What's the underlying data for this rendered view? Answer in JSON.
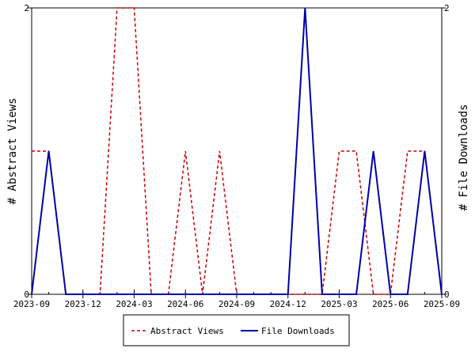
{
  "chart_data": {
    "type": "line",
    "x_type": "month",
    "x_range": [
      "2023-09",
      "2025-09"
    ],
    "x_ticks": [
      "2023-09",
      "2023-12",
      "2024-03",
      "2024-06",
      "2024-09",
      "2024-12",
      "2025-03",
      "2025-06",
      "2025-09"
    ],
    "ylim": [
      0,
      2
    ],
    "y_ticks": [
      "0",
      "2"
    ],
    "ylabel_left": "# Abstract Views",
    "ylabel_right": "# File Downloads",
    "grid": false,
    "legend_position": "bottom",
    "series": [
      {
        "name": "Abstract Views",
        "color": "#cc0000",
        "style": "dashed",
        "points": [
          [
            "2023-09",
            1
          ],
          [
            "2023-10",
            1
          ],
          [
            "2023-11",
            0
          ],
          [
            "2023-12",
            0
          ],
          [
            "2024-01",
            0
          ],
          [
            "2024-02",
            2
          ],
          [
            "2024-03",
            2
          ],
          [
            "2024-04",
            0
          ],
          [
            "2024-05",
            0
          ],
          [
            "2024-06",
            1
          ],
          [
            "2024-07",
            0
          ],
          [
            "2024-08",
            1
          ],
          [
            "2024-09",
            0
          ],
          [
            "2024-10",
            0
          ],
          [
            "2024-11",
            0
          ],
          [
            "2024-12",
            0
          ],
          [
            "2025-01",
            0
          ],
          [
            "2025-02",
            0
          ],
          [
            "2025-03",
            1
          ],
          [
            "2025-04",
            1
          ],
          [
            "2025-05",
            0
          ],
          [
            "2025-06",
            0
          ],
          [
            "2025-07",
            1
          ],
          [
            "2025-08",
            1
          ],
          [
            "2025-09",
            0
          ]
        ]
      },
      {
        "name": "File Downloads",
        "color": "#0000aa",
        "style": "solid",
        "points": [
          [
            "2023-09",
            0
          ],
          [
            "2023-10",
            1
          ],
          [
            "2023-11",
            0
          ],
          [
            "2023-12",
            0
          ],
          [
            "2024-01",
            0
          ],
          [
            "2024-02",
            0
          ],
          [
            "2024-03",
            0
          ],
          [
            "2024-04",
            0
          ],
          [
            "2024-05",
            0
          ],
          [
            "2024-06",
            0
          ],
          [
            "2024-07",
            0
          ],
          [
            "2024-08",
            0
          ],
          [
            "2024-09",
            0
          ],
          [
            "2024-10",
            0
          ],
          [
            "2024-11",
            0
          ],
          [
            "2024-12",
            0
          ],
          [
            "2025-01",
            2
          ],
          [
            "2025-02",
            0
          ],
          [
            "2025-03",
            0
          ],
          [
            "2025-04",
            0
          ],
          [
            "2025-05",
            1
          ],
          [
            "2025-06",
            0
          ],
          [
            "2025-07",
            0
          ],
          [
            "2025-08",
            1
          ],
          [
            "2025-09",
            0
          ]
        ]
      }
    ]
  }
}
